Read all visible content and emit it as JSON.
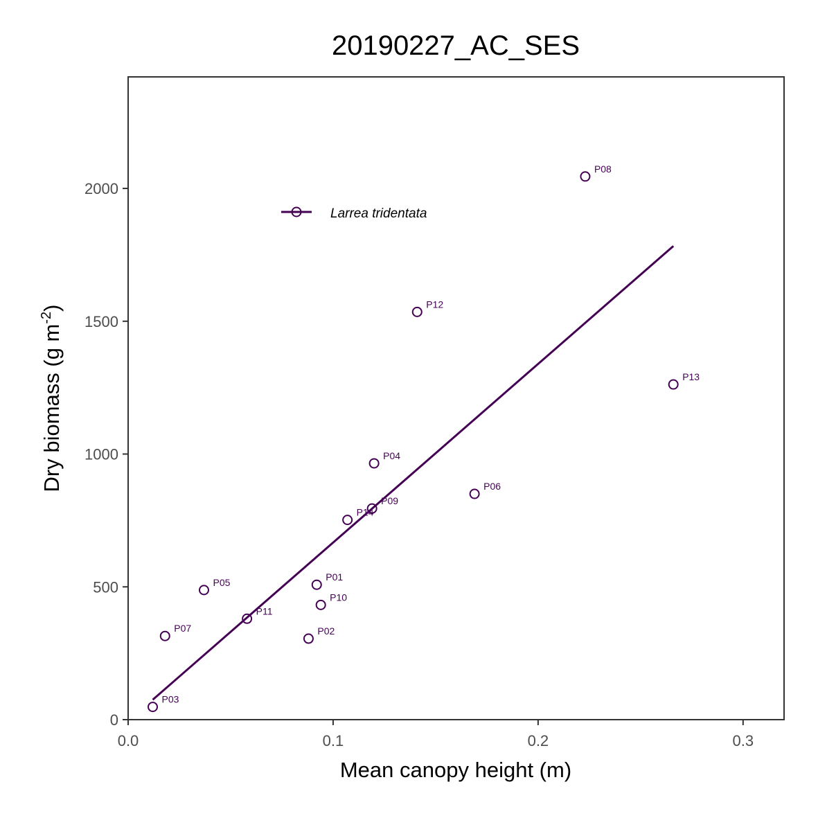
{
  "chart_data": {
    "type": "scatter",
    "title": "20190227_AC_SES",
    "xlabel": "Mean canopy height (m)",
    "ylabel_main": "Dry biomass (g m",
    "ylabel_sup": "-2",
    "ylabel_close": ")",
    "xlim": [
      0.0,
      0.32
    ],
    "ylim": [
      0,
      2420
    ],
    "x_ticks": [
      0.0,
      0.1,
      0.2,
      0.3
    ],
    "x_tick_labels": [
      "0.0",
      "0.1",
      "0.2",
      "0.3"
    ],
    "y_ticks": [
      0,
      500,
      1000,
      1500,
      2000
    ],
    "y_tick_labels": [
      "0",
      "500",
      "1000",
      "1500",
      "2000"
    ],
    "grid": false,
    "legend": {
      "label": "Larrea tridentata",
      "position": "top-left"
    },
    "color": "#440154",
    "series": [
      {
        "name": "Larrea tridentata",
        "points": [
          {
            "label": "P01",
            "x": 0.092,
            "y": 508
          },
          {
            "label": "P02",
            "x": 0.088,
            "y": 305
          },
          {
            "label": "P03",
            "x": 0.012,
            "y": 48
          },
          {
            "label": "P04",
            "x": 0.12,
            "y": 965
          },
          {
            "label": "P05",
            "x": 0.037,
            "y": 488
          },
          {
            "label": "P06",
            "x": 0.169,
            "y": 850
          },
          {
            "label": "P07",
            "x": 0.018,
            "y": 315
          },
          {
            "label": "P08",
            "x": 0.223,
            "y": 2045
          },
          {
            "label": "P09",
            "x": 0.119,
            "y": 795
          },
          {
            "label": "P10",
            "x": 0.094,
            "y": 432
          },
          {
            "label": "P11",
            "x": 0.058,
            "y": 380
          },
          {
            "label": "P12",
            "x": 0.141,
            "y": 1535
          },
          {
            "label": "P13",
            "x": 0.266,
            "y": 1262
          },
          {
            "label": "P14",
            "x": 0.107,
            "y": 752
          }
        ],
        "fit_line": {
          "x": [
            0.012,
            0.266
          ],
          "y": [
            75,
            1783
          ]
        }
      }
    ]
  }
}
